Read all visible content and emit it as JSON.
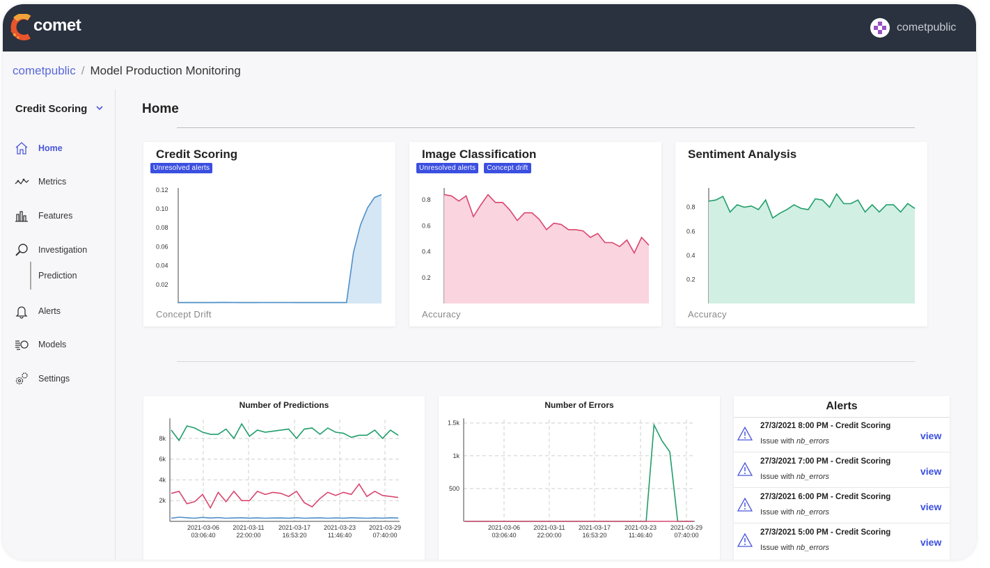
{
  "topbar": {
    "app_name": "comet",
    "user": "cometpublic"
  },
  "breadcrumb": {
    "workspace": "cometpublic",
    "separator": "/",
    "page": "Model Production Monitoring"
  },
  "sidebar": {
    "project": "Credit Scoring",
    "items": [
      {
        "label": "Home",
        "icon": "home-icon",
        "active": true
      },
      {
        "label": "Metrics",
        "icon": "metrics-icon"
      },
      {
        "label": "Features",
        "icon": "features-icon"
      },
      {
        "label": "Investigation",
        "icon": "search-icon"
      },
      {
        "label": "Prediction",
        "icon": "",
        "sub": true
      },
      {
        "label": "Alerts",
        "icon": "bell-icon"
      },
      {
        "label": "Models",
        "icon": "models-icon"
      },
      {
        "label": "Settings",
        "icon": "gear-icon"
      }
    ]
  },
  "main": {
    "title": "Home"
  },
  "model_cards": [
    {
      "title": "Credit Scoring",
      "badges": [
        "Unresolved alerts"
      ],
      "metric": "Concept Drift",
      "color": "#4e8fc7",
      "fill": "#d5e6f5"
    },
    {
      "title": "Image Classification",
      "badges": [
        "Unresolved alerts",
        "Concept drift"
      ],
      "metric": "Accuracy",
      "color": "#d9466f",
      "fill": "#fad4de"
    },
    {
      "title": "Sentiment Analysis",
      "badges": [],
      "metric": "Accuracy",
      "color": "#1f9e6a",
      "fill": "#d1efe2"
    }
  ],
  "chart_data": [
    {
      "type": "area",
      "title": "Credit Scoring",
      "ylabel": "Concept Drift",
      "y_ticks": [
        "0.12",
        "0.10",
        "0.08",
        "0.06",
        "0.04",
        "0.02"
      ],
      "ylim": [
        0,
        0.125
      ],
      "values": [
        0.001,
        0.001,
        0.001,
        0.001,
        0.001,
        0.001,
        0.0012,
        0.0012,
        0.0011,
        0.001,
        0.001,
        0.001,
        0.0011,
        0.0011,
        0.0011,
        0.0011,
        0.0011,
        0.001,
        0.001,
        0.001,
        0.001,
        0.001,
        0.001,
        0.001,
        0.001,
        0.054,
        0.083,
        0.101,
        0.112,
        0.115
      ]
    },
    {
      "type": "area",
      "title": "Image Classification",
      "ylabel": "Accuracy",
      "y_ticks": [
        "0.8",
        "0.6",
        "0.4",
        "0.2"
      ],
      "ylim": [
        0,
        0.87
      ],
      "values": [
        0.84,
        0.83,
        0.79,
        0.83,
        0.67,
        0.76,
        0.84,
        0.78,
        0.78,
        0.72,
        0.64,
        0.7,
        0.7,
        0.65,
        0.57,
        0.62,
        0.61,
        0.57,
        0.57,
        0.56,
        0.51,
        0.54,
        0.47,
        0.47,
        0.44,
        0.49,
        0.39,
        0.51,
        0.45
      ]
    },
    {
      "type": "area",
      "title": "Sentiment Analysis",
      "ylabel": "Accuracy",
      "y_ticks": [
        "0.8",
        "0.6",
        "0.4",
        "0.2"
      ],
      "ylim": [
        0,
        0.96
      ],
      "values": [
        0.85,
        0.86,
        0.89,
        0.76,
        0.82,
        0.8,
        0.81,
        0.78,
        0.86,
        0.71,
        0.75,
        0.78,
        0.82,
        0.79,
        0.78,
        0.87,
        0.86,
        0.8,
        0.91,
        0.83,
        0.83,
        0.86,
        0.76,
        0.82,
        0.76,
        0.82,
        0.82,
        0.76,
        0.83,
        0.79
      ]
    },
    {
      "type": "line",
      "title": "Number of Predictions",
      "y_ticks": [
        "8k",
        "6k",
        "4k",
        "2k"
      ],
      "ylim": [
        0,
        9800
      ],
      "x_ticks": [
        "2021-03-06\n03:06:40",
        "2021-03-11\n22:00:00",
        "2021-03-17\n16:53:20",
        "2021-03-23\n11:46:40",
        "2021-03-29\n07:40:00"
      ],
      "series": [
        {
          "color": "#1f9e6a",
          "values": [
            8800,
            7800,
            9200,
            9000,
            8600,
            8400,
            8400,
            8900,
            8000,
            9400,
            8200,
            8800,
            8600,
            8700,
            8800,
            8900,
            8000,
            8900,
            9000,
            8400,
            9000,
            8600,
            8500,
            8100,
            8300,
            8300,
            8800,
            8000,
            8800,
            8300
          ]
        },
        {
          "color": "#d9466f",
          "values": [
            2700,
            2900,
            1700,
            1900,
            2600,
            1300,
            2800,
            1900,
            2900,
            2000,
            2000,
            2900,
            2600,
            2800,
            2700,
            2400,
            2900,
            1800,
            1400,
            2200,
            2800,
            2500,
            2800,
            2600,
            3600,
            2400,
            2900,
            2500,
            2400,
            2300
          ]
        },
        {
          "color": "#4e8fc7",
          "values": [
            300,
            400,
            350,
            300,
            380,
            320,
            360,
            300,
            330,
            350,
            310,
            340,
            300,
            320,
            330,
            310,
            350,
            300,
            320,
            340,
            300,
            330,
            310,
            350,
            320,
            300,
            330,
            310,
            340,
            320
          ]
        }
      ]
    },
    {
      "type": "line",
      "title": "Number of Errors",
      "y_ticks": [
        "1.5k",
        "1k",
        "500"
      ],
      "ylim": [
        0,
        1550
      ],
      "x_ticks": [
        "2021-03-06\n03:06:40",
        "2021-03-11\n22:00:00",
        "2021-03-17\n16:53:20",
        "2021-03-23\n11:46:40",
        "2021-03-29\n07:40:00"
      ],
      "series": [
        {
          "color": "#1f9e6a",
          "values": [
            0,
            0,
            0,
            0,
            0,
            0,
            0,
            0,
            0,
            0,
            0,
            0,
            0,
            0,
            0,
            0,
            0,
            0,
            0,
            0,
            0,
            0,
            0,
            0,
            1470,
            1230,
            1060,
            0,
            0,
            0
          ]
        },
        {
          "color": "#d9466f",
          "values": [
            0,
            0,
            0,
            0,
            0,
            0,
            0,
            0,
            0,
            0,
            0,
            0,
            0,
            0,
            0,
            0,
            0,
            0,
            0,
            0,
            0,
            0,
            0,
            0,
            0,
            0,
            0,
            0,
            0,
            0
          ]
        }
      ]
    }
  ],
  "alerts": {
    "title": "Alerts",
    "items": [
      {
        "title": "27/3/2021 8:00 PM - Credit Scoring",
        "prefix": "Issue with ",
        "metric": "nb_errors",
        "action": "view"
      },
      {
        "title": "27/3/2021 7:00 PM - Credit Scoring",
        "prefix": "Issue with ",
        "metric": "nb_errors",
        "action": "view"
      },
      {
        "title": "27/3/2021 6:00 PM - Credit Scoring",
        "prefix": "Issue with ",
        "metric": "nb_errors",
        "action": "view"
      },
      {
        "title": "27/3/2021 5:00 PM - Credit Scoring",
        "prefix": "Issue with ",
        "metric": "nb_errors",
        "action": "view"
      }
    ]
  }
}
